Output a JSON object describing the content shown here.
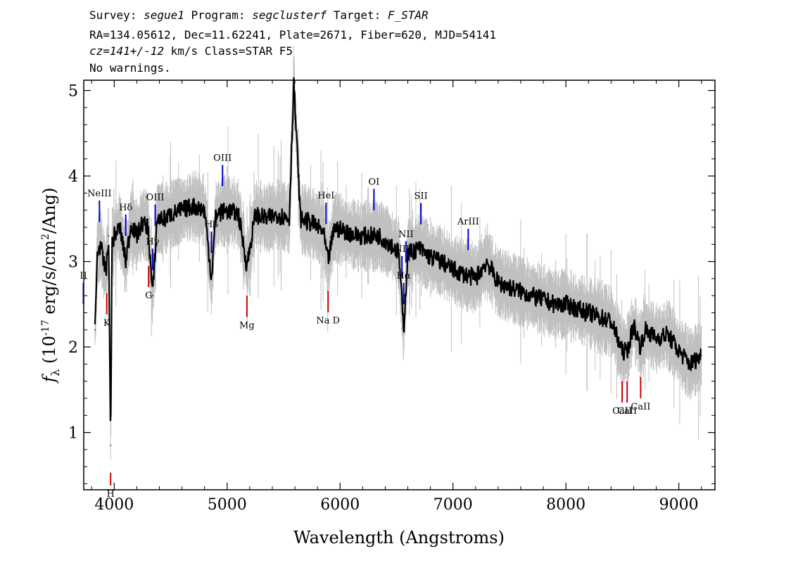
{
  "header": {
    "line1": {
      "survey_label": "Survey: ",
      "survey": "segue1",
      "program_label": " Program: ",
      "program": "segclusterf",
      "target_label": " Target: ",
      "target": "F_STAR"
    },
    "line2": "RA=134.05612, Dec=11.62241, Plate=2671, Fiber=620, MJD=54141",
    "line3": {
      "cz": "cz=141+/-12",
      "rest": " km/s Class=STAR F5"
    },
    "line4": "No warnings."
  },
  "chart_data": {
    "type": "line",
    "xlabel": "Wavelength (Angstroms)",
    "ylabel": "f_λ (10^-17 erg/s/cm²/Ang)",
    "xlim": [
      3730,
      9320
    ],
    "ylim": [
      0.33,
      5.12
    ],
    "x_ticks": [
      4000,
      5000,
      6000,
      7000,
      8000,
      9000
    ],
    "y_ticks": [
      1,
      2,
      3,
      4,
      5
    ],
    "series": [
      {
        "color": "#000000",
        "x": [
          3830,
          3850,
          3880,
          3900,
          3930,
          3950,
          3968,
          3980,
          4000,
          4050,
          4102,
          4150,
          4200,
          4250,
          4300,
          4340,
          4380,
          4450,
          4500,
          4600,
          4700,
          4800,
          4861,
          4900,
          5000,
          5100,
          5175,
          5250,
          5350,
          5450,
          5550,
          5590,
          5650,
          5750,
          5850,
          5893,
          5950,
          6050,
          6150,
          6250,
          6350,
          6450,
          6520,
          6563,
          6600,
          6700,
          6800,
          6900,
          7000,
          7100,
          7200,
          7300,
          7400,
          7500,
          7600,
          7700,
          7800,
          7900,
          8000,
          8100,
          8200,
          8300,
          8400,
          8498,
          8542,
          8600,
          8662,
          8700,
          8800,
          8900,
          9000,
          9100,
          9200
        ],
        "values": [
          2.2,
          3.1,
          3.2,
          3.0,
          2.9,
          3.3,
          0.85,
          3.2,
          3.3,
          3.4,
          3.0,
          3.45,
          3.3,
          3.45,
          3.4,
          2.6,
          3.5,
          3.5,
          3.55,
          3.6,
          3.65,
          3.6,
          2.8,
          3.55,
          3.6,
          3.55,
          2.95,
          3.55,
          3.5,
          3.55,
          3.5,
          5.1,
          3.5,
          3.45,
          3.35,
          3.0,
          3.4,
          3.35,
          3.3,
          3.3,
          3.3,
          3.2,
          3.1,
          2.2,
          3.1,
          3.15,
          3.05,
          3.0,
          2.9,
          2.85,
          2.8,
          3.0,
          2.75,
          2.7,
          2.65,
          2.6,
          2.55,
          2.5,
          2.5,
          2.45,
          2.4,
          2.35,
          2.3,
          1.95,
          1.95,
          2.25,
          2.0,
          2.2,
          2.1,
          2.15,
          1.95,
          1.8,
          1.9
        ]
      }
    ],
    "emission_lines": [
      {
        "label": "NeIII",
        "x": 3869,
        "color": "#0000cc"
      },
      {
        "label": "Hδ",
        "x": 4102,
        "color": "#0000cc"
      },
      {
        "label": "Hγ",
        "x": 4340,
        "color": "#0000cc"
      },
      {
        "label": "OIII",
        "x": 4363,
        "color": "#0000cc"
      },
      {
        "label": "Hβ",
        "x": 4861,
        "color": "#0000cc"
      },
      {
        "label": "OIII",
        "x": 4959,
        "color": "#0000cc"
      },
      {
        "label": "HeI",
        "x": 5876,
        "color": "#0000cc"
      },
      {
        "label": "OI",
        "x": 6300,
        "color": "#0000cc"
      },
      {
        "label": "NII",
        "x": 6548,
        "color": "#0000cc"
      },
      {
        "label": "Hα",
        "x": 6563,
        "color": "#0000cc"
      },
      {
        "label": "NII",
        "x": 6583,
        "color": "#0000cc"
      },
      {
        "label": "SII",
        "x": 6716,
        "color": "#0000cc"
      },
      {
        "label": "ArIII",
        "x": 7135,
        "color": "#0000cc"
      },
      {
        "label": "II",
        "x": 3727,
        "color": "#0000cc"
      }
    ],
    "absorption_lines": [
      {
        "label": "K",
        "x": 3934,
        "color": "#cc0000"
      },
      {
        "label": "H",
        "x": 3968,
        "color": "#cc0000"
      },
      {
        "label": "G",
        "x": 4305,
        "color": "#cc0000"
      },
      {
        "label": "Mg",
        "x": 5175,
        "color": "#cc0000"
      },
      {
        "label": "Na D",
        "x": 5894,
        "color": "#cc0000"
      },
      {
        "label": "CaII",
        "x": 8498,
        "color": "#cc0000"
      },
      {
        "label": "CaII",
        "x": 8542,
        "color": "#cc0000"
      },
      {
        "label": "CaII",
        "x": 8662,
        "color": "#cc0000"
      }
    ],
    "noise_color": "#c0c0c0",
    "grid": false
  }
}
